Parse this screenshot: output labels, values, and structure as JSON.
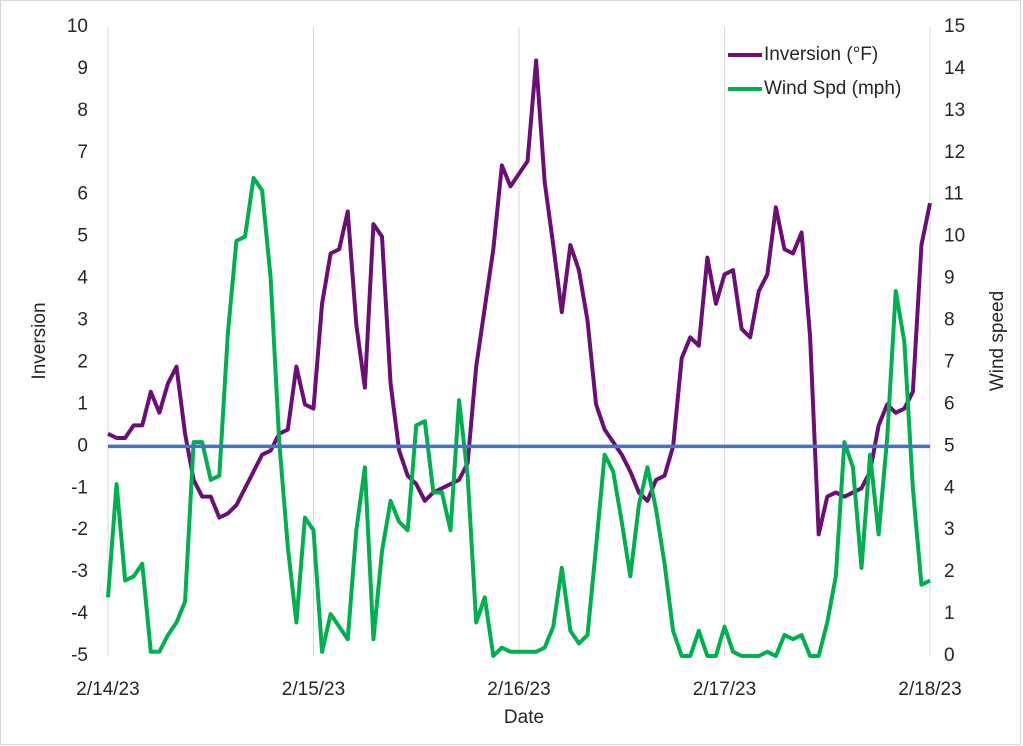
{
  "chart_data": {
    "type": "line",
    "x_label": "Date",
    "y_label": "Inversion",
    "y2_label": "Wind speed",
    "x": [
      0,
      1,
      2,
      3,
      4,
      5,
      6,
      7,
      8,
      9,
      10,
      11,
      12,
      13,
      14,
      15,
      16,
      17,
      18,
      19,
      20,
      21,
      22,
      23,
      24,
      25,
      26,
      27,
      28,
      29,
      30,
      31,
      32,
      33,
      34,
      35,
      36,
      37,
      38,
      39,
      40,
      41,
      42,
      43,
      44,
      45,
      46,
      47,
      48,
      49,
      50,
      51,
      52,
      53,
      54,
      55,
      56,
      57,
      58,
      59,
      60,
      61,
      62,
      63,
      64,
      65,
      66,
      67,
      68,
      69,
      70,
      71,
      72,
      73,
      74,
      75,
      76,
      77,
      78,
      79,
      80,
      81,
      82,
      83,
      84,
      85,
      86,
      87,
      88,
      89,
      90,
      91,
      92,
      93,
      94,
      95,
      96
    ],
    "xlim": [
      0,
      96
    ],
    "xticks": [
      {
        "value": 0,
        "label": "2/14/23"
      },
      {
        "value": 24,
        "label": "2/15/23"
      },
      {
        "value": 48,
        "label": "2/16/23"
      },
      {
        "value": 72,
        "label": "2/17/23"
      },
      {
        "value": 96,
        "label": "2/18/23"
      }
    ],
    "ylim": [
      -5,
      10
    ],
    "yticks": [
      -5,
      -4,
      -3,
      -2,
      -1,
      0,
      1,
      2,
      3,
      4,
      5,
      6,
      7,
      8,
      9,
      10
    ],
    "y2lim": [
      0,
      15
    ],
    "y2ticks": [
      0,
      1,
      2,
      3,
      4,
      5,
      6,
      7,
      8,
      9,
      10,
      11,
      12,
      13,
      14,
      15
    ],
    "grid": "x",
    "legend": "top-right",
    "zero_line": {
      "value": 0,
      "color": "#4472c4"
    },
    "series": [
      {
        "name": "Inversion (°F)",
        "color": "#6b0f77",
        "values": [
          0.3,
          0.2,
          0.2,
          0.5,
          0.5,
          1.3,
          0.8,
          1.5,
          1.9,
          0.3,
          -0.8,
          -1.2,
          -1.2,
          -1.7,
          -1.6,
          -1.4,
          -1.0,
          -0.6,
          -0.2,
          -0.1,
          0.3,
          0.4,
          1.9,
          1.0,
          0.9,
          3.4,
          4.6,
          4.7,
          5.6,
          2.9,
          1.4,
          5.3,
          5.0,
          1.5,
          -0.1,
          -0.7,
          -0.9,
          -1.3,
          -1.1,
          -1.0,
          -0.9,
          -0.8,
          -0.4,
          1.9,
          3.3,
          4.7,
          6.7,
          6.2,
          6.5,
          6.8,
          9.2,
          6.3,
          4.8,
          3.2,
          4.8,
          4.2,
          3.0,
          1.0,
          0.4,
          0.1,
          -0.2,
          -0.6,
          -1.1,
          -1.3,
          -0.8,
          -0.7,
          0.0,
          2.1,
          2.6,
          2.4,
          4.5,
          3.4,
          4.1,
          4.2,
          2.8,
          2.6,
          3.7,
          4.1,
          5.7,
          4.7,
          4.6,
          5.1,
          2.6,
          -2.1,
          -1.2,
          -1.1,
          -1.2,
          -1.1,
          -1.0,
          -0.6,
          0.5,
          1.0,
          0.8,
          0.9,
          1.3,
          4.8,
          5.8
        ]
      },
      {
        "name": "Wind Spd (mph)",
        "color": "#00b050",
        "axis": "y2",
        "values": [
          1.4,
          4.1,
          1.8,
          1.9,
          2.2,
          0.1,
          0.1,
          0.5,
          0.8,
          1.3,
          5.1,
          5.1,
          4.2,
          4.3,
          7.7,
          9.9,
          10.0,
          11.4,
          11.1,
          9.0,
          5.1,
          2.6,
          0.8,
          3.3,
          3.0,
          0.1,
          1.0,
          0.7,
          0.4,
          3.0,
          4.5,
          0.4,
          2.5,
          3.7,
          3.2,
          3.0,
          5.5,
          5.6,
          3.9,
          3.9,
          3.0,
          6.1,
          4.3,
          0.8,
          1.4,
          0.0,
          0.2,
          0.1,
          0.1,
          0.1,
          0.1,
          0.2,
          0.7,
          2.1,
          0.6,
          0.3,
          0.5,
          2.6,
          4.8,
          4.4,
          3.2,
          1.9,
          3.6,
          4.5,
          3.5,
          2.2,
          0.6,
          0.0,
          0.0,
          0.6,
          0.0,
          0.0,
          0.7,
          0.1,
          0.0,
          0.0,
          0.0,
          0.1,
          0.0,
          0.5,
          0.4,
          0.5,
          0.0,
          0.0,
          0.8,
          1.9,
          5.1,
          4.5,
          2.1,
          4.8,
          2.9,
          5.2,
          8.7,
          7.5,
          4.0,
          1.7,
          1.8
        ]
      }
    ]
  }
}
